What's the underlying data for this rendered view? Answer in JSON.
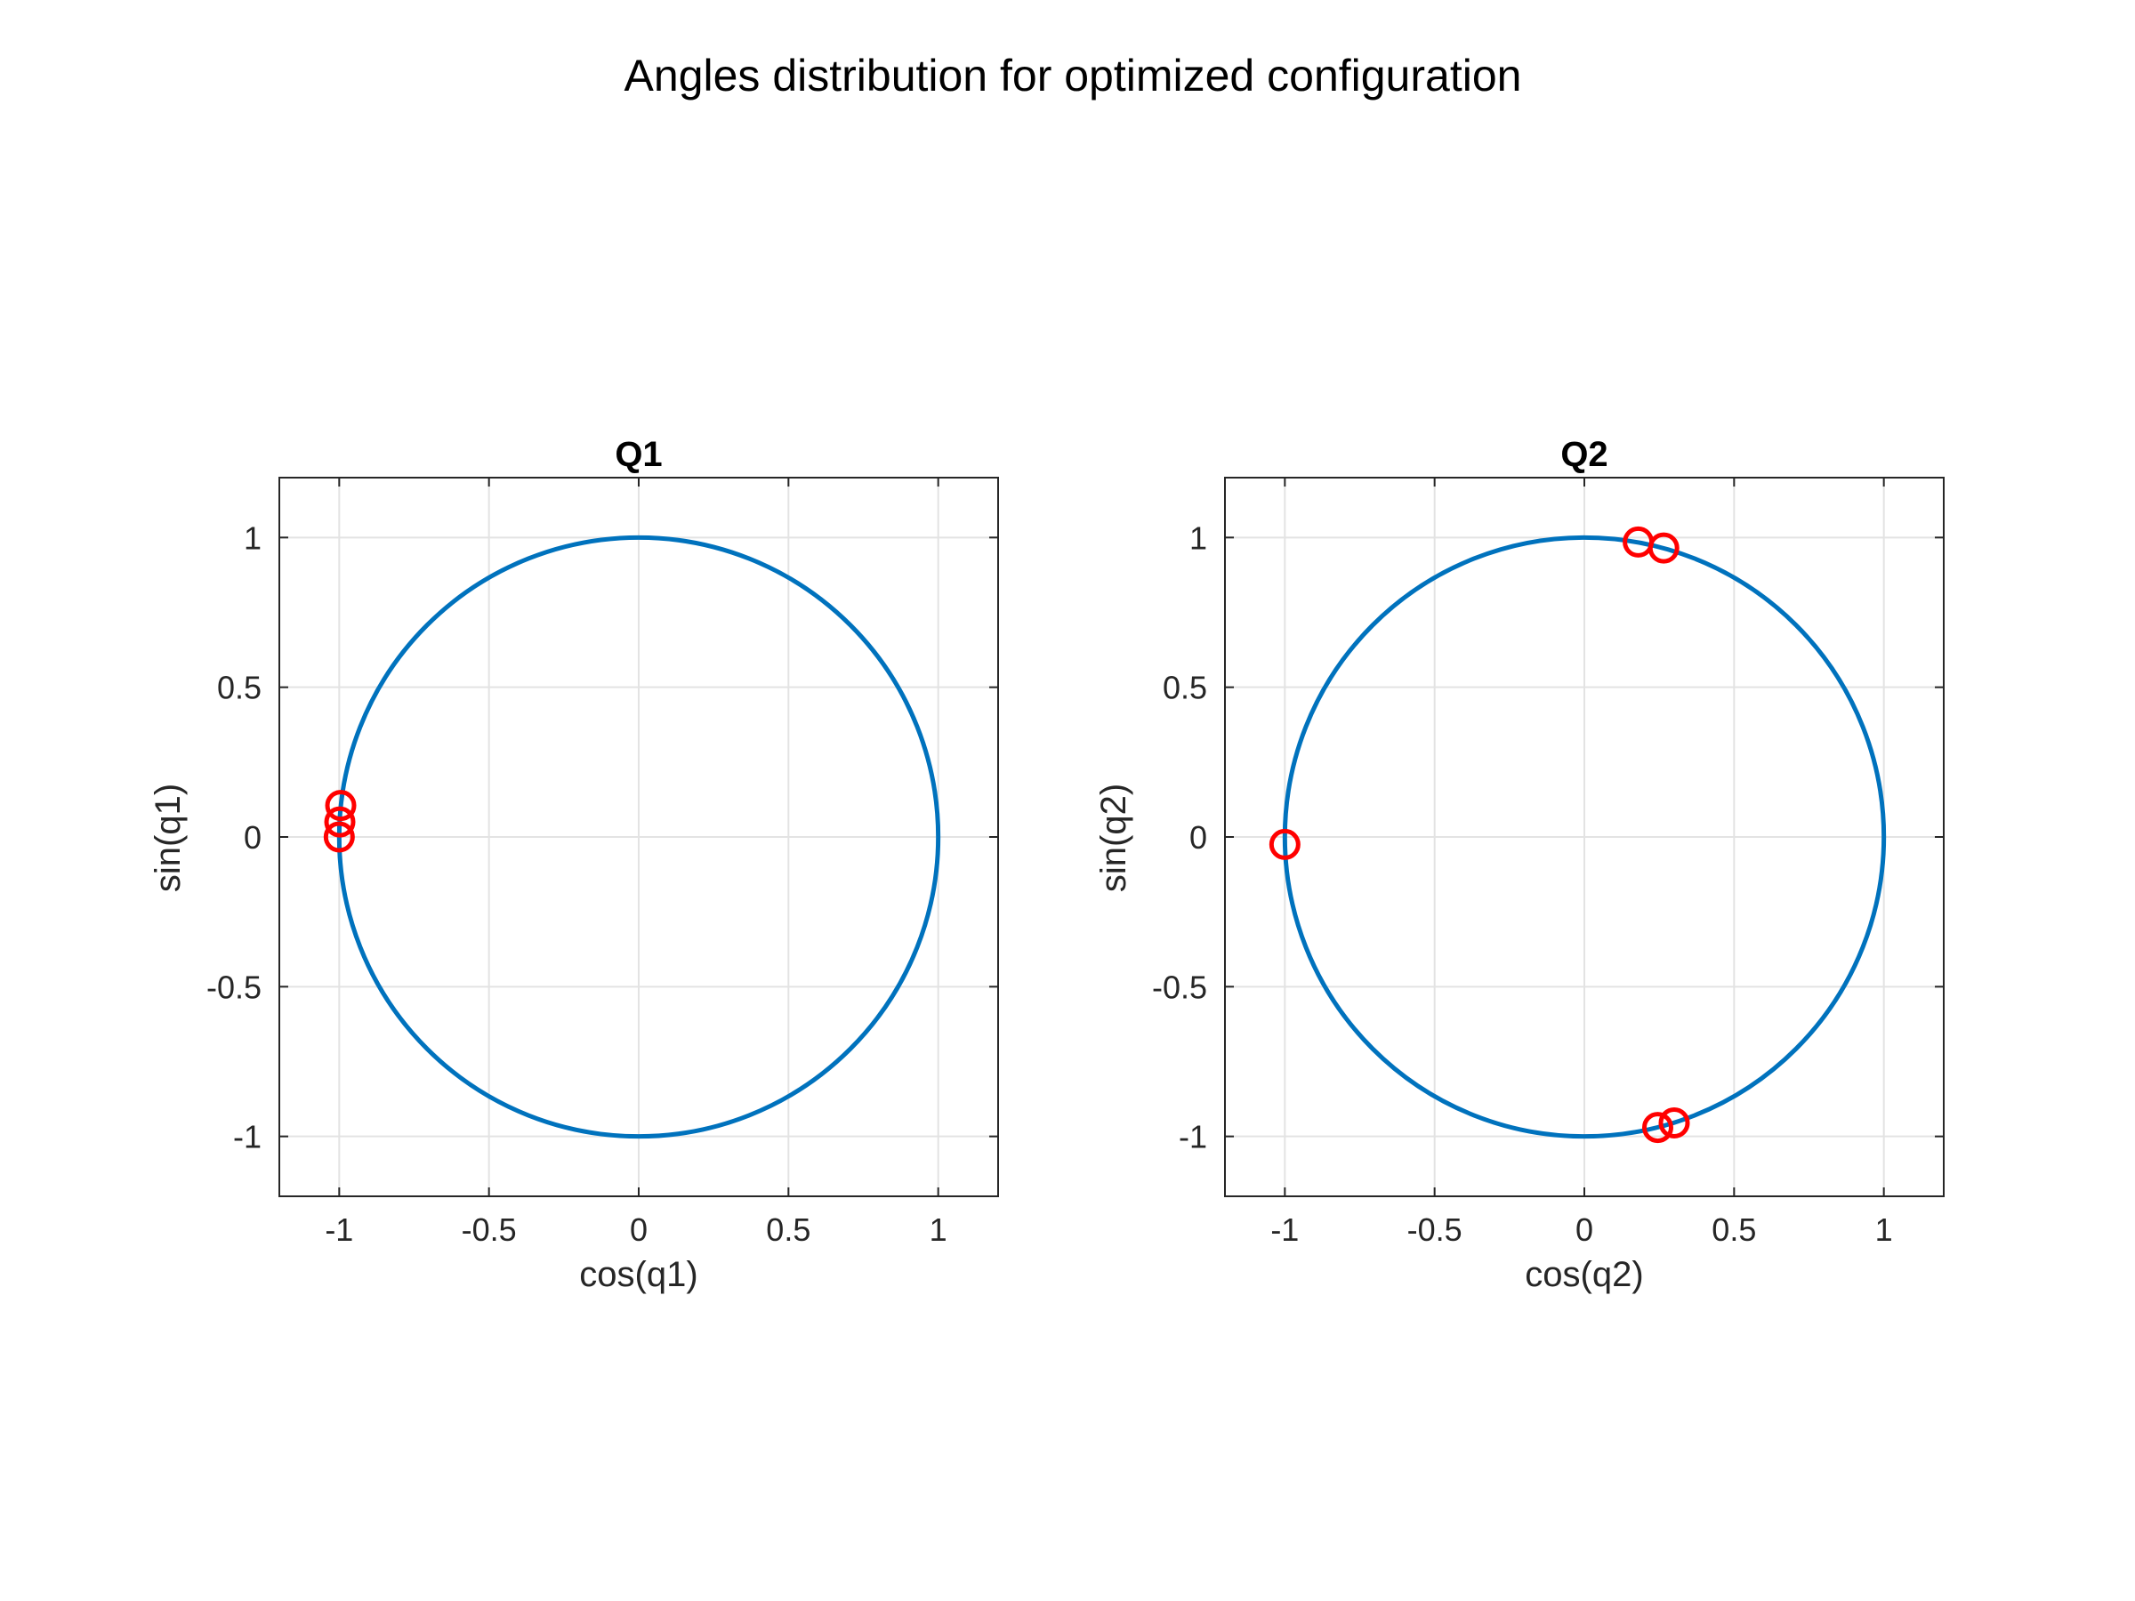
{
  "figure": {
    "title": "Angles distribution for optimized configuration"
  },
  "colors": {
    "circle": "#0072BD",
    "marker": "#FF0000",
    "grid": "#e3e3e3",
    "axis": "#262626"
  },
  "chart_data": [
    {
      "type": "scatter",
      "title": "Q1",
      "xlabel": "cos(q1)",
      "ylabel": "sin(q1)",
      "xlim": [
        -1.2,
        1.2
      ],
      "ylim": [
        -1.2,
        1.2
      ],
      "xticks": [
        -1,
        -0.5,
        0,
        0.5,
        1
      ],
      "yticks": [
        -1,
        -0.5,
        0,
        0.5,
        1
      ],
      "grid": true,
      "reference_curve": "unit-circle",
      "points": [
        {
          "x": -0.995,
          "y": 0.105
        },
        {
          "x": -0.998,
          "y": 0.05
        },
        {
          "x": -1.0,
          "y": 0.0
        }
      ]
    },
    {
      "type": "scatter",
      "title": "Q2",
      "xlabel": "cos(q2)",
      "ylabel": "sin(q2)",
      "xlim": [
        -1.2,
        1.2
      ],
      "ylim": [
        -1.2,
        1.2
      ],
      "xticks": [
        -1,
        -0.5,
        0,
        0.5,
        1
      ],
      "yticks": [
        -1,
        -0.5,
        0,
        0.5,
        1
      ],
      "grid": true,
      "reference_curve": "unit-circle",
      "points": [
        {
          "x": 0.18,
          "y": 0.985
        },
        {
          "x": 0.265,
          "y": 0.965
        },
        {
          "x": -1.0,
          "y": -0.025
        },
        {
          "x": 0.245,
          "y": -0.97
        },
        {
          "x": 0.3,
          "y": -0.955
        }
      ]
    }
  ]
}
